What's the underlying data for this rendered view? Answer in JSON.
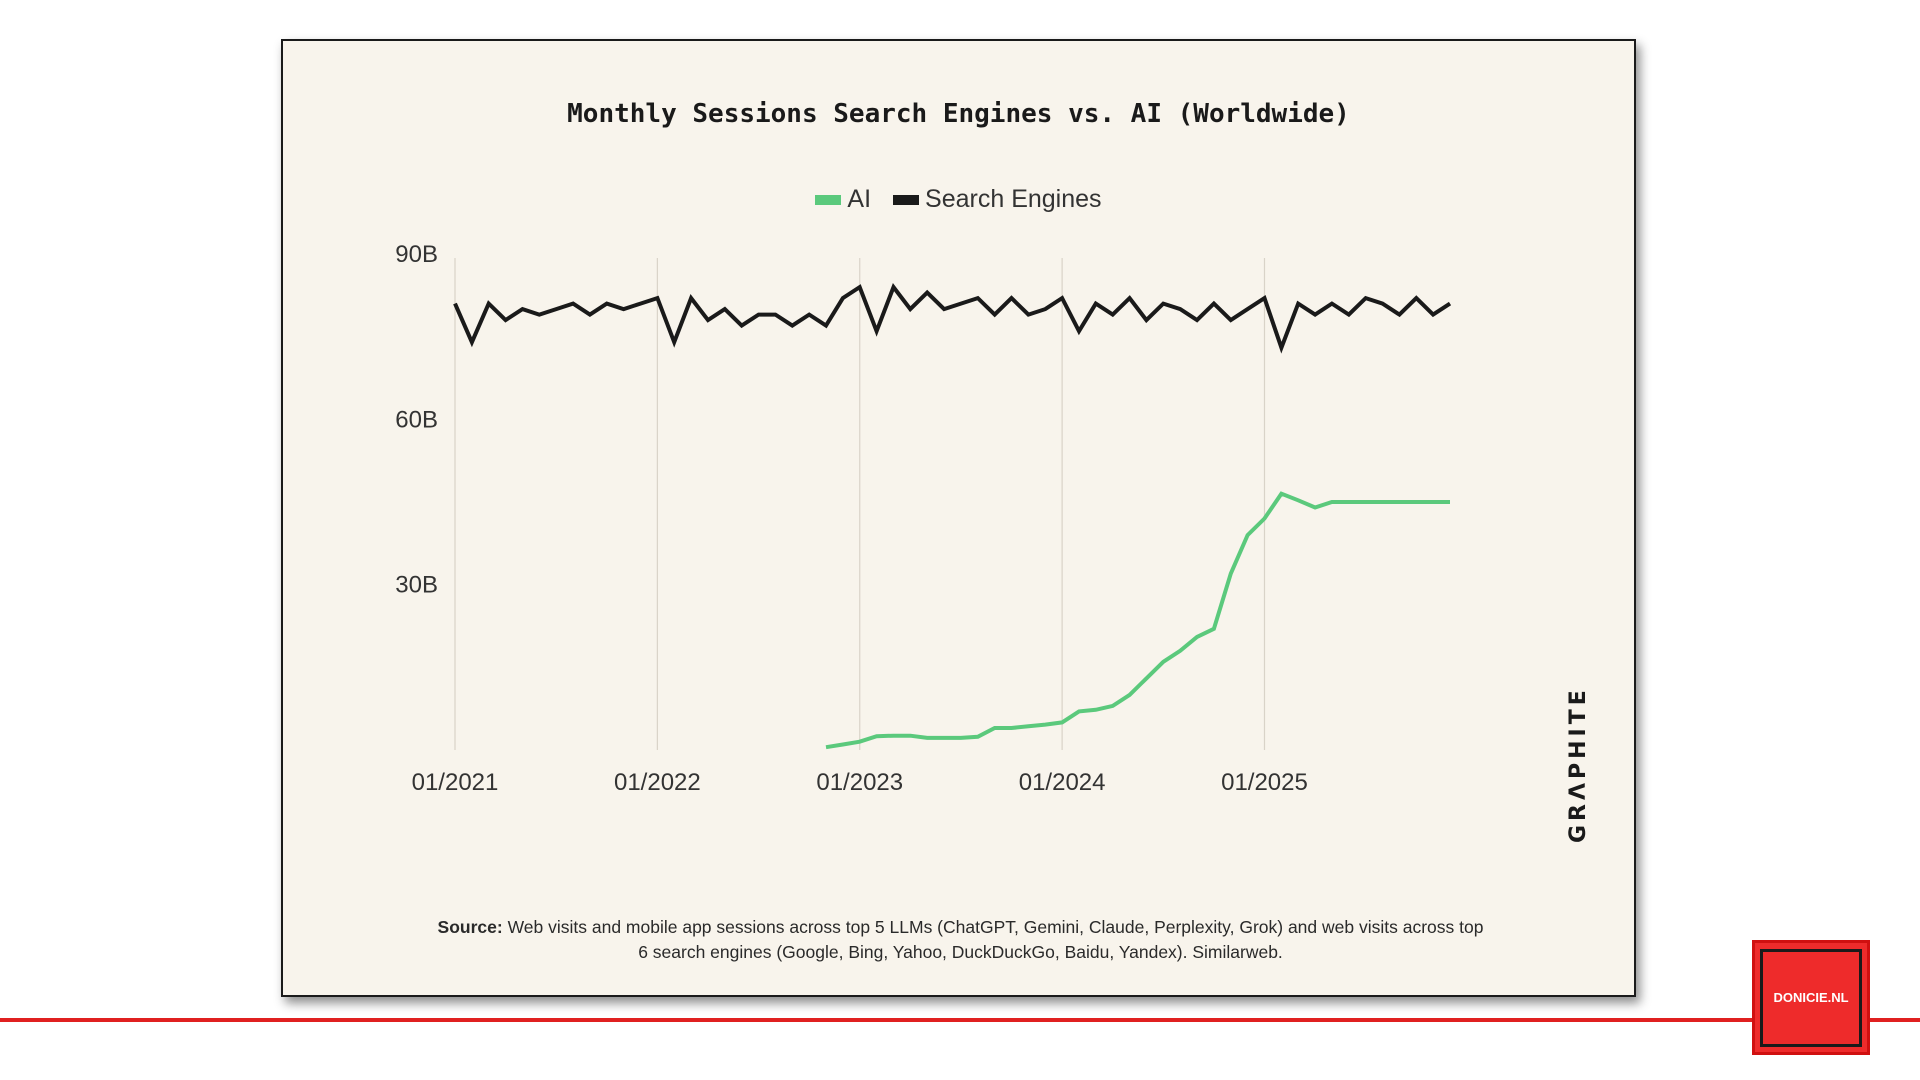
{
  "chart_data": {
    "type": "line",
    "title": "Monthly Sessions Search Engines vs. AI (Worldwide)",
    "x_ticks": [
      "01/2021",
      "01/2022",
      "01/2023",
      "01/2024",
      "01/2025"
    ],
    "y_ticks": [
      "30B",
      "60B",
      "90B"
    ],
    "ylim": [
      0,
      90
    ],
    "y_unit": "B",
    "x_range": [
      "2021-01",
      "2025-12"
    ],
    "grid": "vertical lines at x ticks",
    "legend_position": "top-center",
    "series": [
      {
        "name": "AI",
        "color": "#5bc97c",
        "x": [
          "2022-11",
          "2022-12",
          "2023-01",
          "2023-02",
          "2023-03",
          "2023-04",
          "2023-05",
          "2023-06",
          "2023-07",
          "2023-08",
          "2023-09",
          "2023-10",
          "2023-11",
          "2023-12",
          "2024-01",
          "2024-02",
          "2024-03",
          "2024-04",
          "2024-05",
          "2024-06",
          "2024-07",
          "2024-08",
          "2024-09",
          "2024-10",
          "2024-11",
          "2024-12",
          "2025-01",
          "2025-02",
          "2025-03",
          "2025-04",
          "2025-05",
          "2025-06",
          "2025-07",
          "2025-08",
          "2025-09",
          "2025-10",
          "2025-11",
          "2025-12"
        ],
        "values": [
          0.5,
          1.0,
          1.5,
          2.5,
          2.6,
          2.6,
          2.2,
          2.2,
          2.2,
          2.4,
          4.0,
          4.0,
          4.3,
          4.6,
          5.0,
          7.0,
          7.3,
          8.0,
          10.0,
          13.0,
          16.0,
          18.0,
          20.5,
          22.0,
          32.0,
          39.0,
          42.0,
          46.5,
          45.3,
          44.0,
          45.0,
          45.0,
          45.0,
          45.0,
          45.0,
          45.0,
          45.0,
          45.0
        ]
      },
      {
        "name": "Search Engines",
        "color": "#1a1a1a",
        "x": [
          "2021-01",
          "2021-02",
          "2021-03",
          "2021-04",
          "2021-05",
          "2021-06",
          "2021-07",
          "2021-08",
          "2021-09",
          "2021-10",
          "2021-11",
          "2021-12",
          "2022-01",
          "2022-02",
          "2022-03",
          "2022-04",
          "2022-05",
          "2022-06",
          "2022-07",
          "2022-08",
          "2022-09",
          "2022-10",
          "2022-11",
          "2022-12",
          "2023-01",
          "2023-02",
          "2023-03",
          "2023-04",
          "2023-05",
          "2023-06",
          "2023-07",
          "2023-08",
          "2023-09",
          "2023-10",
          "2023-11",
          "2023-12",
          "2024-01",
          "2024-02",
          "2024-03",
          "2024-04",
          "2024-05",
          "2024-06",
          "2024-07",
          "2024-08",
          "2024-09",
          "2024-10",
          "2024-11",
          "2024-12",
          "2025-01",
          "2025-02",
          "2025-03",
          "2025-04",
          "2025-05",
          "2025-06",
          "2025-07",
          "2025-08",
          "2025-09",
          "2025-10",
          "2025-11",
          "2025-12"
        ],
        "values": [
          81,
          74,
          81,
          78,
          80,
          79,
          80,
          81,
          79,
          81,
          80,
          81,
          82,
          74,
          82,
          78,
          80,
          77,
          79,
          79,
          77,
          79,
          77,
          82,
          84,
          76,
          84,
          80,
          83,
          80,
          81,
          82,
          79,
          82,
          79,
          80,
          82,
          76,
          81,
          79,
          82,
          78,
          81,
          80,
          78,
          81,
          78,
          80,
          82,
          73,
          81,
          79,
          81,
          79,
          82,
          81,
          79,
          82,
          79,
          81
        ]
      }
    ]
  },
  "legend": [
    "AI",
    "Search Engines"
  ],
  "source": {
    "label": "Source:",
    "text": "Web visits and mobile app sessions across top 5 LLMs (ChatGPT, Gemini, Claude, Perplexity, Grok) and web visits across top 6 search engines (Google, Bing, Yahoo, DuckDuckGo, Baidu, Yandex). Similarweb."
  },
  "brand": "GRΛPHITE",
  "badge": "DONICIE.NL",
  "colors": {
    "background": "#f8f4ec",
    "ai": "#5bc97c",
    "search": "#1a1a1a",
    "accent": "#e02020"
  }
}
